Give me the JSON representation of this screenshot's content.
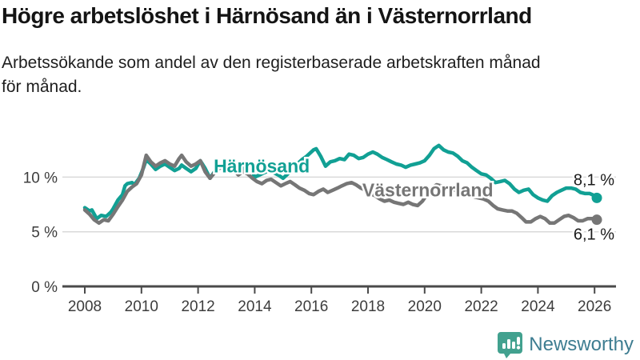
{
  "header": {
    "title": "Högre arbetslöshet i Härnösand än i Västernorrland",
    "subtitle": "Arbetssökande som andel av den registerbaserade arbetskraften månad\nför månad."
  },
  "footer": {
    "brand": "Newsworthy",
    "logo_icon": "speech-bubble-bar-chart-icon"
  },
  "colors": {
    "harnosand": "#11a094",
    "vasternorrland": "#767676",
    "gridline": "#d9d9d9",
    "axis": "#4a4a4a",
    "logo_teal": "#42a18f",
    "brand_text": "#3e7d91"
  },
  "chart_data": {
    "type": "line",
    "title": "Högre arbetslöshet i Härnösand än i Västernorrland",
    "subtitle": "Arbetssökande som andel av den registerbaserade arbetskraften månad för månad.",
    "y_unit": "%",
    "x_range": [
      2008.0,
      2026.17
    ],
    "ylim": [
      0,
      13.5
    ],
    "grid": "horizontal",
    "legend_position": "inline-labels",
    "x_ticks": [
      2008,
      2010,
      2012,
      2014,
      2016,
      2018,
      2020,
      2022,
      2024,
      2026
    ],
    "y_axis": {
      "ticks": [
        {
          "value": 0,
          "label": "0 %"
        },
        {
          "value": 5,
          "label": "5 %"
        },
        {
          "value": 10,
          "label": "10 %"
        }
      ],
      "gridline_values": [
        5,
        10
      ]
    },
    "annotations": [
      {
        "text": "Härnösand",
        "x": 2012.55,
        "y": 10.45,
        "color": "#11a094"
      },
      {
        "text": "Västernorrland",
        "x": 2017.8,
        "y": 8.25,
        "color": "#767676"
      }
    ],
    "series": [
      {
        "name": "Härnösand",
        "color": "#11a094",
        "end_label": "8,1 %",
        "end_value": 8.1,
        "points": [
          [
            2008.0,
            7.2
          ],
          [
            2008.17,
            6.9
          ],
          [
            2008.25,
            7.0
          ],
          [
            2008.42,
            6.2
          ],
          [
            2008.58,
            6.5
          ],
          [
            2008.75,
            6.4
          ],
          [
            2008.92,
            6.8
          ],
          [
            2009.0,
            7.1
          ],
          [
            2009.17,
            7.9
          ],
          [
            2009.33,
            8.4
          ],
          [
            2009.42,
            9.2
          ],
          [
            2009.5,
            9.4
          ],
          [
            2009.67,
            9.5
          ],
          [
            2009.75,
            9.3
          ],
          [
            2009.92,
            9.9
          ],
          [
            2010.08,
            10.9
          ],
          [
            2010.17,
            11.6
          ],
          [
            2010.33,
            11.2
          ],
          [
            2010.5,
            10.7
          ],
          [
            2010.67,
            11.0
          ],
          [
            2010.83,
            11.2
          ],
          [
            2011.0,
            10.9
          ],
          [
            2011.17,
            10.6
          ],
          [
            2011.33,
            10.8
          ],
          [
            2011.42,
            11.1
          ],
          [
            2011.58,
            10.8
          ],
          [
            2011.75,
            10.5
          ],
          [
            2011.92,
            10.8
          ],
          [
            2012.08,
            11.5
          ],
          [
            2012.25,
            10.8
          ],
          [
            2012.42,
            9.9
          ],
          [
            2012.58,
            10.5
          ],
          [
            2012.75,
            10.9
          ],
          [
            2012.92,
            11.0
          ],
          [
            2013.08,
            11.2
          ],
          [
            2013.25,
            10.8
          ],
          [
            2013.42,
            10.4
          ],
          [
            2013.58,
            10.8
          ],
          [
            2013.75,
            11.0
          ],
          [
            2013.92,
            10.5
          ],
          [
            2014.0,
            10.0
          ],
          [
            2014.17,
            10.2
          ],
          [
            2014.33,
            10.4
          ],
          [
            2014.5,
            10.6
          ],
          [
            2014.67,
            10.4
          ],
          [
            2014.83,
            10.2
          ],
          [
            2015.0,
            9.9
          ],
          [
            2015.17,
            10.3
          ],
          [
            2015.33,
            10.8
          ],
          [
            2015.5,
            11.2
          ],
          [
            2015.67,
            11.6
          ],
          [
            2015.83,
            11.9
          ],
          [
            2016.08,
            12.5
          ],
          [
            2016.17,
            12.6
          ],
          [
            2016.33,
            11.9
          ],
          [
            2016.5,
            11.0
          ],
          [
            2016.67,
            11.4
          ],
          [
            2016.83,
            11.5
          ],
          [
            2017.0,
            11.7
          ],
          [
            2017.17,
            11.6
          ],
          [
            2017.33,
            12.1
          ],
          [
            2017.5,
            12.0
          ],
          [
            2017.67,
            11.7
          ],
          [
            2017.83,
            11.8
          ],
          [
            2018.0,
            12.1
          ],
          [
            2018.17,
            12.3
          ],
          [
            2018.33,
            12.1
          ],
          [
            2018.5,
            11.8
          ],
          [
            2018.67,
            11.6
          ],
          [
            2018.83,
            11.4
          ],
          [
            2019.0,
            11.2
          ],
          [
            2019.17,
            11.1
          ],
          [
            2019.33,
            10.9
          ],
          [
            2019.5,
            11.1
          ],
          [
            2019.67,
            11.2
          ],
          [
            2019.83,
            11.3
          ],
          [
            2020.0,
            11.5
          ],
          [
            2020.17,
            12.0
          ],
          [
            2020.33,
            12.6
          ],
          [
            2020.5,
            12.9
          ],
          [
            2020.67,
            12.5
          ],
          [
            2020.83,
            12.3
          ],
          [
            2021.0,
            12.2
          ],
          [
            2021.17,
            11.9
          ],
          [
            2021.33,
            11.5
          ],
          [
            2021.5,
            11.3
          ],
          [
            2021.67,
            10.9
          ],
          [
            2021.83,
            10.6
          ],
          [
            2022.0,
            10.3
          ],
          [
            2022.17,
            10.2
          ],
          [
            2022.33,
            9.9
          ],
          [
            2022.5,
            9.5
          ],
          [
            2022.67,
            9.6
          ],
          [
            2022.83,
            9.7
          ],
          [
            2023.0,
            9.4
          ],
          [
            2023.17,
            8.9
          ],
          [
            2023.33,
            8.6
          ],
          [
            2023.5,
            8.8
          ],
          [
            2023.67,
            8.9
          ],
          [
            2023.83,
            8.4
          ],
          [
            2024.0,
            8.1
          ],
          [
            2024.17,
            7.9
          ],
          [
            2024.33,
            7.8
          ],
          [
            2024.5,
            8.3
          ],
          [
            2024.67,
            8.6
          ],
          [
            2024.83,
            8.8
          ],
          [
            2025.0,
            9.0
          ],
          [
            2025.17,
            9.0
          ],
          [
            2025.33,
            8.9
          ],
          [
            2025.5,
            8.6
          ],
          [
            2025.67,
            8.5
          ],
          [
            2025.83,
            8.5
          ],
          [
            2026.0,
            8.3
          ],
          [
            2026.08,
            8.1
          ]
        ]
      },
      {
        "name": "Västernorrland",
        "color": "#767676",
        "end_label": "6,1 %",
        "end_value": 6.1,
        "points": [
          [
            2008.0,
            7.0
          ],
          [
            2008.17,
            6.6
          ],
          [
            2008.33,
            6.1
          ],
          [
            2008.5,
            5.8
          ],
          [
            2008.67,
            6.1
          ],
          [
            2008.83,
            6.0
          ],
          [
            2009.0,
            6.6
          ],
          [
            2009.17,
            7.3
          ],
          [
            2009.33,
            7.9
          ],
          [
            2009.5,
            8.7
          ],
          [
            2009.67,
            9.1
          ],
          [
            2009.83,
            9.4
          ],
          [
            2010.0,
            10.2
          ],
          [
            2010.17,
            12.0
          ],
          [
            2010.33,
            11.4
          ],
          [
            2010.5,
            11.0
          ],
          [
            2010.67,
            11.3
          ],
          [
            2010.83,
            11.5
          ],
          [
            2011.0,
            11.2
          ],
          [
            2011.17,
            11.0
          ],
          [
            2011.33,
            11.7
          ],
          [
            2011.42,
            12.0
          ],
          [
            2011.58,
            11.4
          ],
          [
            2011.75,
            11.0
          ],
          [
            2011.92,
            11.2
          ],
          [
            2012.08,
            11.5
          ],
          [
            2012.25,
            10.5
          ],
          [
            2012.42,
            9.9
          ],
          [
            2012.58,
            10.4
          ],
          [
            2012.75,
            10.8
          ],
          [
            2012.92,
            11.0
          ],
          [
            2013.08,
            11.1
          ],
          [
            2013.25,
            10.7
          ],
          [
            2013.42,
            10.2
          ],
          [
            2013.58,
            10.5
          ],
          [
            2013.75,
            10.3
          ],
          [
            2013.92,
            9.9
          ],
          [
            2014.08,
            9.6
          ],
          [
            2014.25,
            9.4
          ],
          [
            2014.42,
            9.7
          ],
          [
            2014.58,
            9.8
          ],
          [
            2014.75,
            9.5
          ],
          [
            2014.92,
            9.2
          ],
          [
            2015.08,
            9.4
          ],
          [
            2015.25,
            9.6
          ],
          [
            2015.42,
            9.3
          ],
          [
            2015.58,
            9.0
          ],
          [
            2015.75,
            8.8
          ],
          [
            2015.92,
            8.5
          ],
          [
            2016.08,
            8.4
          ],
          [
            2016.25,
            8.7
          ],
          [
            2016.42,
            8.9
          ],
          [
            2016.58,
            8.6
          ],
          [
            2016.75,
            8.8
          ],
          [
            2016.92,
            9.0
          ],
          [
            2017.08,
            9.2
          ],
          [
            2017.25,
            9.4
          ],
          [
            2017.42,
            9.5
          ],
          [
            2017.58,
            9.3
          ],
          [
            2017.75,
            9.0
          ],
          [
            2017.92,
            8.8
          ],
          [
            2018.08,
            8.5
          ],
          [
            2018.25,
            8.3
          ],
          [
            2018.42,
            8.0
          ],
          [
            2018.58,
            7.8
          ],
          [
            2018.75,
            7.9
          ],
          [
            2018.92,
            7.7
          ],
          [
            2019.08,
            7.6
          ],
          [
            2019.25,
            7.5
          ],
          [
            2019.42,
            7.7
          ],
          [
            2019.58,
            7.5
          ],
          [
            2019.75,
            7.4
          ],
          [
            2019.92,
            7.8
          ],
          [
            2020.08,
            8.4
          ],
          [
            2020.25,
            9.0
          ],
          [
            2020.42,
            9.3
          ],
          [
            2020.58,
            9.2
          ],
          [
            2020.75,
            9.0
          ],
          [
            2020.92,
            8.9
          ],
          [
            2021.08,
            8.8
          ],
          [
            2021.25,
            8.8
          ],
          [
            2021.42,
            8.6
          ],
          [
            2021.58,
            8.4
          ],
          [
            2021.75,
            8.2
          ],
          [
            2021.92,
            8.1
          ],
          [
            2022.08,
            8.0
          ],
          [
            2022.25,
            7.8
          ],
          [
            2022.42,
            7.4
          ],
          [
            2022.58,
            7.1
          ],
          [
            2022.75,
            7.0
          ],
          [
            2022.92,
            6.9
          ],
          [
            2023.08,
            6.9
          ],
          [
            2023.25,
            6.7
          ],
          [
            2023.42,
            6.3
          ],
          [
            2023.58,
            5.9
          ],
          [
            2023.75,
            5.9
          ],
          [
            2023.92,
            6.2
          ],
          [
            2024.08,
            6.4
          ],
          [
            2024.25,
            6.2
          ],
          [
            2024.42,
            5.8
          ],
          [
            2024.58,
            5.8
          ],
          [
            2024.75,
            6.1
          ],
          [
            2024.92,
            6.4
          ],
          [
            2025.08,
            6.5
          ],
          [
            2025.25,
            6.3
          ],
          [
            2025.42,
            6.0
          ],
          [
            2025.58,
            6.0
          ],
          [
            2025.75,
            6.2
          ],
          [
            2025.92,
            6.2
          ],
          [
            2026.08,
            6.1
          ]
        ]
      }
    ]
  }
}
